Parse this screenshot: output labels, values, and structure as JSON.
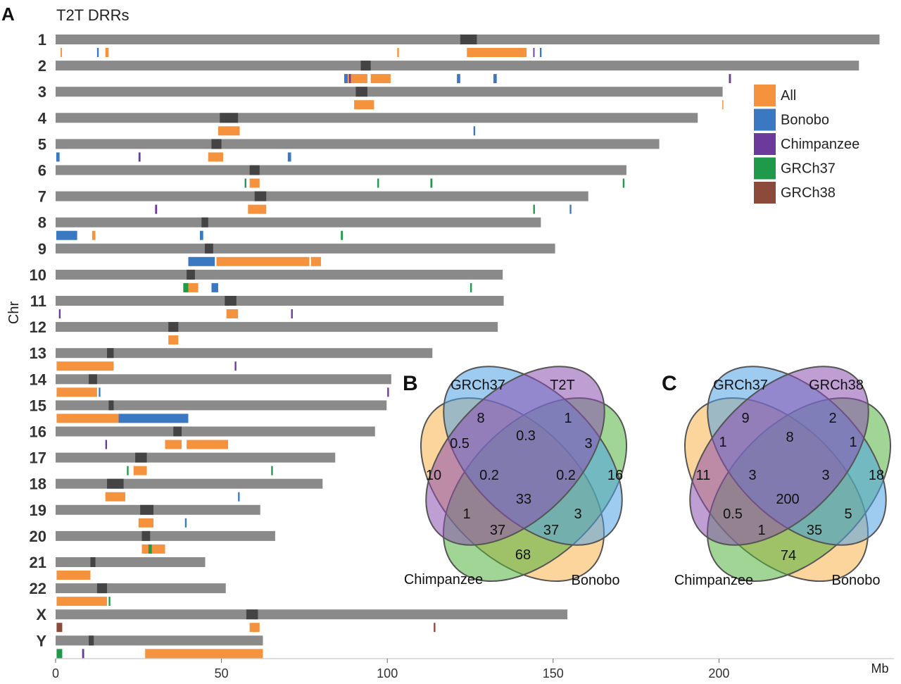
{
  "panel_labels": {
    "a": "A",
    "b": "B",
    "c": "C"
  },
  "colors": {
    "All": "#f5923e",
    "Bonobo": "#3a78c2",
    "Chimpanzee": "#6b3a9b",
    "GRCh37": "#1f9a4a",
    "GRCh38": "#8b4a3a",
    "chromosome": "#8a8a8a",
    "centromere": "#444444"
  },
  "chart_data": [
    {
      "type": "ideogram",
      "title": "T2T DRRs",
      "ylabel": "Chr",
      "xunit": "Mb",
      "xlim": [
        0,
        250
      ],
      "xticks": [
        0,
        50,
        100,
        150,
        200
      ],
      "legend": {
        "placement": "top-right",
        "entries": [
          "All",
          "Bonobo",
          "Chimpanzee",
          "GRCh37",
          "GRCh38"
        ]
      },
      "chromosomes": [
        {
          "name": "1",
          "length": 248.4,
          "centromere": [
            122,
            127
          ],
          "regions": [
            {
              "s": 124,
              "e": 142,
              "c": "All"
            },
            {
              "s": 1.5,
              "e": 1.9,
              "c": "All"
            },
            {
              "s": 15,
              "e": 16,
              "c": "All"
            },
            {
              "s": 103,
              "e": 103.5,
              "c": "All"
            },
            {
              "s": 12.5,
              "e": 13,
              "c": "Bonobo"
            },
            {
              "s": 146,
              "e": 146.5,
              "c": "Bonobo"
            },
            {
              "s": 144,
              "e": 144.4,
              "c": "Chimpanzee"
            }
          ]
        },
        {
          "name": "2",
          "length": 242.2,
          "centromere": [
            92,
            95
          ],
          "regions": [
            {
              "s": 87.5,
              "e": 94,
              "c": "All"
            },
            {
              "s": 95,
              "e": 101,
              "c": "All"
            },
            {
              "s": 87,
              "e": 88,
              "c": "Bonobo"
            },
            {
              "s": 121,
              "e": 122,
              "c": "Bonobo"
            },
            {
              "s": 132,
              "e": 133,
              "c": "Bonobo"
            },
            {
              "s": 203,
              "e": 203.6,
              "c": "Chimpanzee"
            },
            {
              "s": 88.5,
              "e": 89,
              "c": "Chimpanzee"
            }
          ]
        },
        {
          "name": "3",
          "length": 201.1,
          "centromere": [
            90.5,
            94
          ],
          "regions": [
            {
              "s": 90,
              "e": 96,
              "c": "All"
            },
            {
              "s": 201,
              "e": 201.3,
              "c": "All"
            }
          ]
        },
        {
          "name": "4",
          "length": 193.6,
          "centromere": [
            49.5,
            55
          ],
          "regions": [
            {
              "s": 49,
              "e": 55.5,
              "c": "All"
            },
            {
              "s": 126,
              "e": 126.5,
              "c": "Bonobo"
            }
          ]
        },
        {
          "name": "5",
          "length": 182.0,
          "centromere": [
            47,
            50
          ],
          "regions": [
            {
              "s": 46,
              "e": 50.5,
              "c": "All"
            },
            {
              "s": 0.2,
              "e": 1.2,
              "c": "Bonobo"
            },
            {
              "s": 70,
              "e": 71,
              "c": "Bonobo"
            },
            {
              "s": 25,
              "e": 25.6,
              "c": "Chimpanzee"
            }
          ]
        },
        {
          "name": "6",
          "length": 172.1,
          "centromere": [
            58.5,
            61.5
          ],
          "regions": [
            {
              "s": 58.5,
              "e": 61.5,
              "c": "All"
            },
            {
              "s": 57,
              "e": 57.5,
              "c": "GRCh37"
            },
            {
              "s": 97,
              "e": 97.5,
              "c": "GRCh37"
            },
            {
              "s": 113,
              "e": 113.6,
              "c": "GRCh37"
            },
            {
              "s": 171,
              "e": 171.5,
              "c": "GRCh37"
            }
          ]
        },
        {
          "name": "7",
          "length": 160.6,
          "centromere": [
            60,
            63.5
          ],
          "regions": [
            {
              "s": 58,
              "e": 63.5,
              "c": "All"
            },
            {
              "s": 30,
              "e": 30.6,
              "c": "Chimpanzee"
            },
            {
              "s": 155,
              "e": 155.5,
              "c": "Bonobo"
            },
            {
              "s": 144,
              "e": 144.5,
              "c": "GRCh37"
            }
          ]
        },
        {
          "name": "8",
          "length": 146.3,
          "centromere": [
            44,
            46
          ],
          "regions": [
            {
              "s": 0.2,
              "e": 6.5,
              "c": "Bonobo"
            },
            {
              "s": 11,
              "e": 12,
              "c": "All"
            },
            {
              "s": 43.5,
              "e": 44.5,
              "c": "Bonobo"
            },
            {
              "s": 86,
              "e": 86.6,
              "c": "GRCh37"
            }
          ]
        },
        {
          "name": "9",
          "length": 150.6,
          "centromere": [
            45,
            47.5
          ],
          "regions": [
            {
              "s": 48.5,
              "e": 76.5,
              "c": "All"
            },
            {
              "s": 40,
              "e": 48,
              "c": "Bonobo"
            },
            {
              "s": 77,
              "e": 80,
              "c": "All"
            }
          ]
        },
        {
          "name": "10",
          "length": 134.8,
          "centromere": [
            39.5,
            42
          ],
          "regions": [
            {
              "s": 38.5,
              "e": 43,
              "c": "All"
            },
            {
              "s": 38.5,
              "e": 40,
              "c": "GRCh37"
            },
            {
              "s": 47,
              "e": 49,
              "c": "Bonobo"
            },
            {
              "s": 125,
              "e": 125.5,
              "c": "GRCh37"
            }
          ]
        },
        {
          "name": "11",
          "length": 135.1,
          "centromere": [
            51,
            54.5
          ],
          "regions": [
            {
              "s": 51.5,
              "e": 55,
              "c": "All"
            },
            {
              "s": 1,
              "e": 1.5,
              "c": "Chimpanzee"
            },
            {
              "s": 71,
              "e": 71.5,
              "c": "Chimpanzee"
            }
          ]
        },
        {
          "name": "12",
          "length": 133.3,
          "centromere": [
            34,
            37
          ],
          "regions": [
            {
              "s": 34,
              "e": 37,
              "c": "All"
            }
          ]
        },
        {
          "name": "13",
          "length": 113.6,
          "centromere": [
            15.5,
            17.5
          ],
          "regions": [
            {
              "s": 0.3,
              "e": 17.5,
              "c": "All"
            },
            {
              "s": 54,
              "e": 54.5,
              "c": "Chimpanzee"
            }
          ]
        },
        {
          "name": "14",
          "length": 101.2,
          "centromere": [
            10,
            12.5
          ],
          "regions": [
            {
              "s": 0.3,
              "e": 12.5,
              "c": "All"
            },
            {
              "s": 13,
              "e": 13.5,
              "c": "Bonobo"
            },
            {
              "s": 100,
              "e": 100.5,
              "c": "Chimpanzee"
            }
          ]
        },
        {
          "name": "15",
          "length": 99.8,
          "centromere": [
            16,
            17.5
          ],
          "regions": [
            {
              "s": 0.3,
              "e": 19,
              "c": "All"
            },
            {
              "s": 19,
              "e": 40,
              "c": "Bonobo"
            }
          ]
        },
        {
          "name": "16",
          "length": 96.3,
          "centromere": [
            35.5,
            38
          ],
          "regions": [
            {
              "s": 39.5,
              "e": 52,
              "c": "All"
            },
            {
              "s": 33,
              "e": 38,
              "c": "All"
            },
            {
              "s": 15,
              "e": 15.5,
              "c": "Chimpanzee"
            }
          ]
        },
        {
          "name": "17",
          "length": 84.3,
          "centromere": [
            24,
            27.5
          ],
          "regions": [
            {
              "s": 23.5,
              "e": 27.5,
              "c": "All"
            },
            {
              "s": 21.5,
              "e": 22,
              "c": "GRCh37"
            },
            {
              "s": 65,
              "e": 65.5,
              "c": "GRCh37"
            }
          ]
        },
        {
          "name": "18",
          "length": 80.5,
          "centromere": [
            15.5,
            20.5
          ],
          "regions": [
            {
              "s": 15,
              "e": 21,
              "c": "All"
            },
            {
              "s": 55,
              "e": 55.5,
              "c": "Bonobo"
            }
          ]
        },
        {
          "name": "19",
          "length": 61.7,
          "centromere": [
            25.5,
            29.5
          ],
          "regions": [
            {
              "s": 25,
              "e": 29.5,
              "c": "All"
            },
            {
              "s": 39,
              "e": 39.5,
              "c": "Bonobo"
            }
          ]
        },
        {
          "name": "20",
          "length": 66.2,
          "centromere": [
            26,
            28.5
          ],
          "regions": [
            {
              "s": 26,
              "e": 33,
              "c": "All"
            },
            {
              "s": 28,
              "e": 29,
              "c": "GRCh37"
            }
          ]
        },
        {
          "name": "21",
          "length": 45.1,
          "centromere": [
            10.5,
            12
          ],
          "regions": [
            {
              "s": 0.3,
              "e": 10.5,
              "c": "All"
            }
          ]
        },
        {
          "name": "22",
          "length": 51.3,
          "centromere": [
            12.5,
            15.5
          ],
          "regions": [
            {
              "s": 0.3,
              "e": 15.5,
              "c": "All"
            },
            {
              "s": 16,
              "e": 16.5,
              "c": "GRCh37"
            }
          ]
        },
        {
          "name": "X",
          "length": 154.3,
          "centromere": [
            57.5,
            61
          ],
          "regions": [
            {
              "s": 58.5,
              "e": 61.5,
              "c": "All"
            },
            {
              "s": 0.3,
              "e": 2,
              "c": "GRCh38"
            },
            {
              "s": 114,
              "e": 114.5,
              "c": "GRCh38"
            }
          ]
        },
        {
          "name": "Y",
          "length": 62.5,
          "centromere": [
            10,
            11.5
          ],
          "regions": [
            {
              "s": 27,
              "e": 62.5,
              "c": "All"
            },
            {
              "s": 0.3,
              "e": 2,
              "c": "GRCh37"
            },
            {
              "s": 8,
              "e": 8.6,
              "c": "Chimpanzee"
            }
          ]
        }
      ]
    },
    {
      "type": "venn",
      "sets": [
        "GRCh37",
        "T2T",
        "Chimpanzee",
        "Bonobo"
      ],
      "values": {
        "GRCh37": "8",
        "T2T": "1",
        "Chimpanzee": "10",
        "Bonobo": "16",
        "GRCh37_T2T": "0.3",
        "GRCh37_Chimpanzee": "0.5",
        "T2T_Bonobo": "3",
        "GRCh37_T2T_Chimpanzee": "0.2",
        "GRCh37_T2T_Bonobo": "0.2",
        "all_four": "33",
        "T2T_Chimpanzee": "1",
        "GRCh37_Bonobo": "3",
        "T2T_Chimpanzee_Bonobo": "37",
        "GRCh37_Chimpanzee_Bonobo": "37",
        "Chimpanzee_Bonobo": "68"
      }
    },
    {
      "type": "venn",
      "sets": [
        "GRCh37",
        "GRCh38",
        "Chimpanzee",
        "Bonobo"
      ],
      "values": {
        "GRCh37": "9",
        "GRCh38": "2",
        "Chimpanzee": "11",
        "Bonobo": "18",
        "GRCh37_GRCh38": "8",
        "GRCh37_Chimpanzee": "1",
        "GRCh38_Bonobo": "1",
        "GRCh37_GRCh38_Chimpanzee": "3",
        "GRCh37_GRCh38_Bonobo": "3",
        "all_four": "200",
        "GRCh38_Chimpanzee": "0.5",
        "GRCh37_Bonobo": "5",
        "GRCh38_Chimpanzee_Bonobo": "1",
        "GRCh37_Chimpanzee_Bonobo": "35",
        "Chimpanzee_Bonobo": "74"
      }
    }
  ]
}
